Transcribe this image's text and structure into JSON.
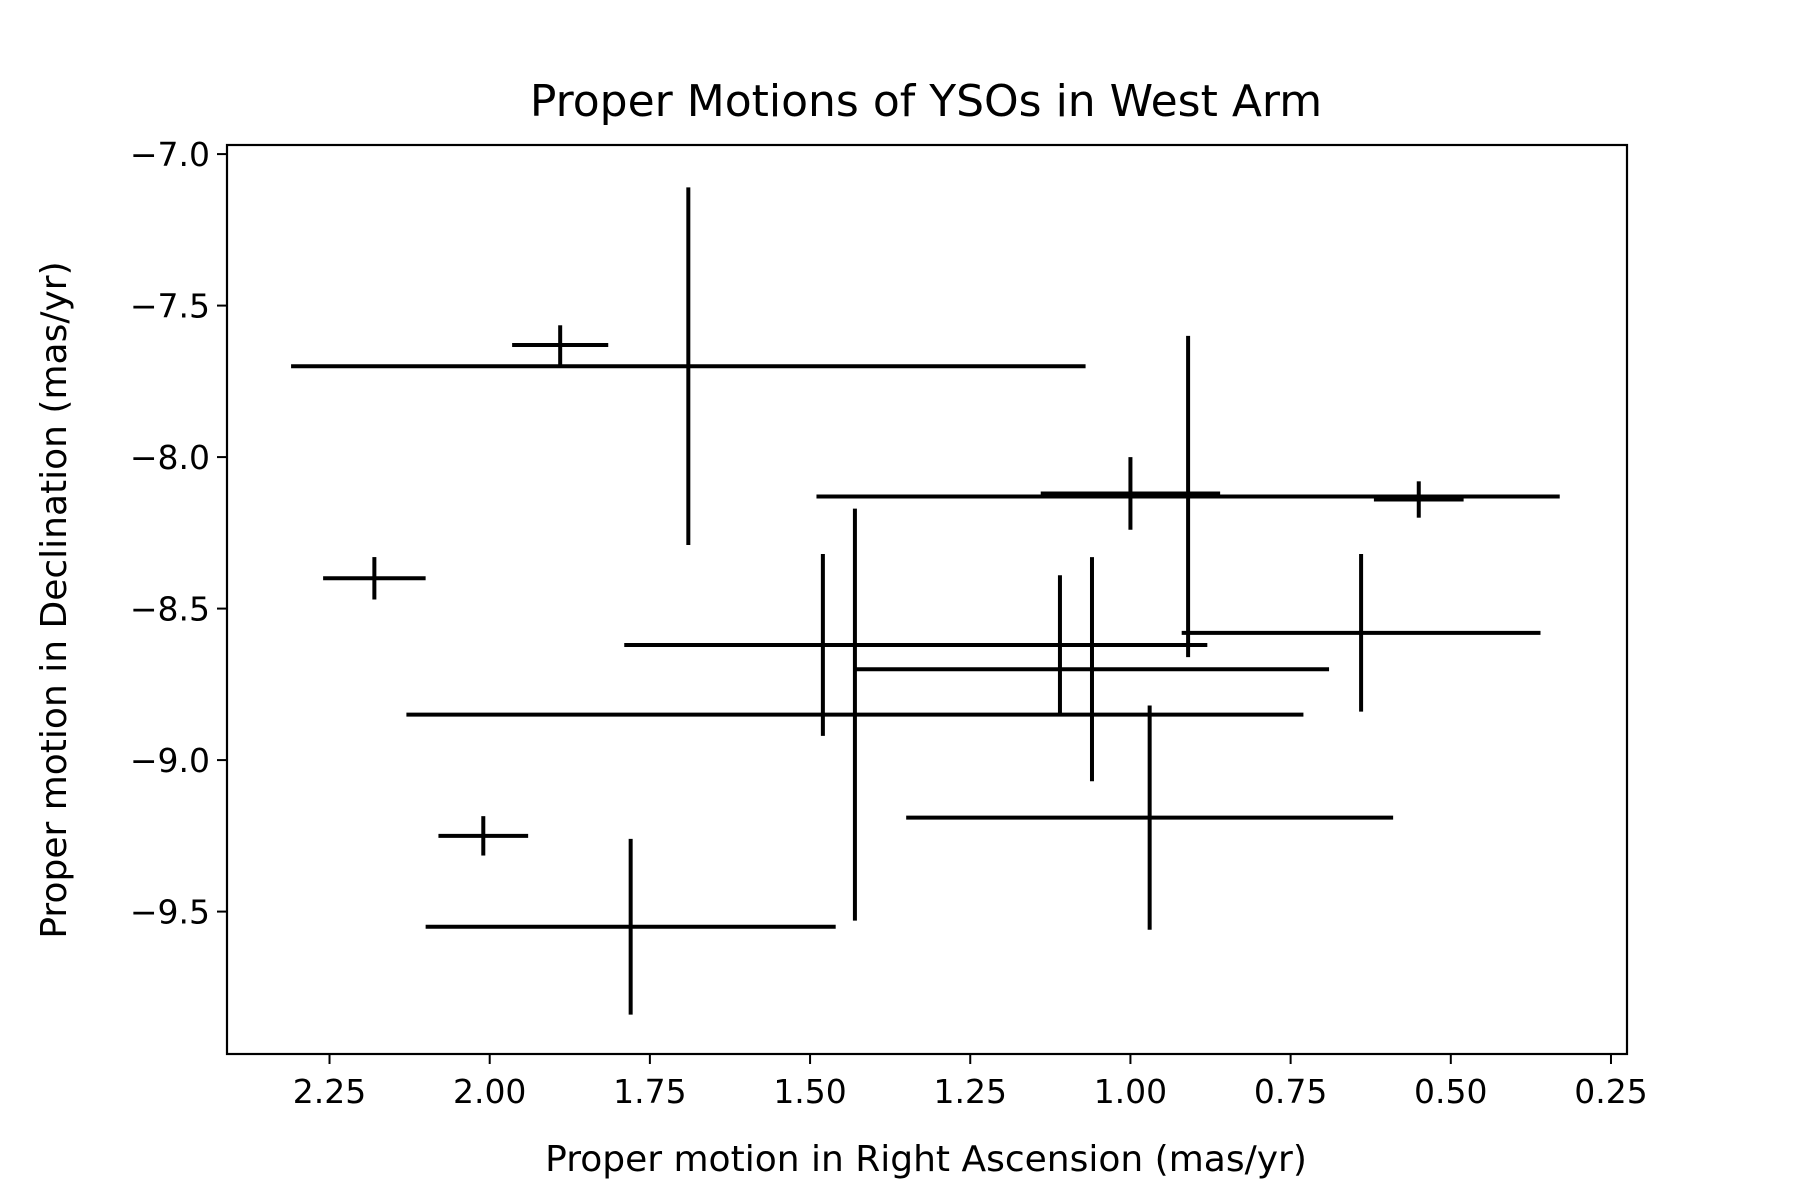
{
  "chart_data": {
    "type": "scatter",
    "title": "Proper Motions of YSOs in West Arm",
    "xlabel": "Proper motion in Right Ascension (mas/yr)",
    "ylabel": "Proper motion in Declination (mas/yr)",
    "xlim": [
      2.41,
      0.225
    ],
    "ylim": [
      -9.97,
      -6.97
    ],
    "x_inverted": true,
    "xticks": [
      2.25,
      2.0,
      1.75,
      1.5,
      1.25,
      1.0,
      0.75,
      0.5,
      0.25
    ],
    "xtick_labels": [
      "2.25",
      "2.00",
      "1.75",
      "1.50",
      "1.25",
      "1.00",
      "0.75",
      "0.50",
      "0.25"
    ],
    "yticks": [
      -7.0,
      -7.5,
      -8.0,
      -8.5,
      -9.0,
      -9.5
    ],
    "ytick_labels": [
      "−7.0",
      "−7.5",
      "−8.0",
      "−8.5",
      "−9.0",
      "−9.5"
    ],
    "grid": false,
    "legend": "none",
    "marker_color": "#000000",
    "points": [
      {
        "x": 1.69,
        "y": -7.7,
        "xerr": 0.62,
        "yerr": 0.59
      },
      {
        "x": 1.89,
        "y": -7.63,
        "xerr": 0.075,
        "yerr": 0.065
      },
      {
        "x": 2.18,
        "y": -8.4,
        "xerr": 0.08,
        "yerr": 0.07
      },
      {
        "x": 2.01,
        "y": -9.25,
        "xerr": 0.07,
        "yerr": 0.065
      },
      {
        "x": 1.78,
        "y": -9.55,
        "xerr": 0.32,
        "yerr": 0.29
      },
      {
        "x": 1.48,
        "y": -8.62,
        "xerr": 0.31,
        "yerr": 0.3
      },
      {
        "x": 1.43,
        "y": -8.85,
        "xerr": 0.7,
        "yerr": 0.68
      },
      {
        "x": 1.11,
        "y": -8.62,
        "xerr": 0.23,
        "yerr": 0.23
      },
      {
        "x": 1.06,
        "y": -8.7,
        "xerr": 0.37,
        "yerr": 0.37
      },
      {
        "x": 0.97,
        "y": -9.19,
        "xerr": 0.38,
        "yerr": 0.37
      },
      {
        "x": 0.91,
        "y": -8.13,
        "xerr": 0.58,
        "yerr": 0.53
      },
      {
        "x": 1.0,
        "y": -8.12,
        "xerr": 0.14,
        "yerr": 0.12
      },
      {
        "x": 0.64,
        "y": -8.58,
        "xerr": 0.28,
        "yerr": 0.26
      },
      {
        "x": 0.55,
        "y": -8.14,
        "xerr": 0.07,
        "yerr": 0.06
      }
    ]
  }
}
